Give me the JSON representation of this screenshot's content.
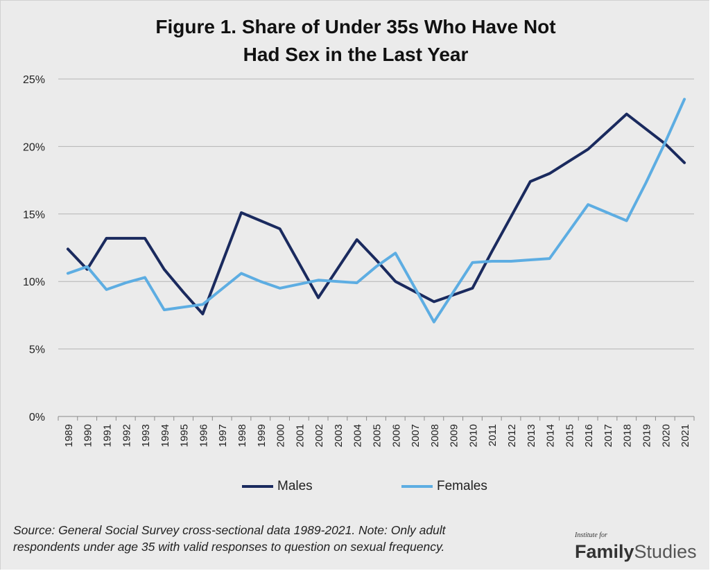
{
  "chart_data": {
    "type": "line",
    "title": "Figure 1. Share of Under 35s Who Have Not\nHad Sex in the Last Year",
    "x": [
      "1989",
      "1990",
      "1991",
      "1992",
      "1993",
      "1994",
      "1995",
      "1996",
      "1997",
      "1998",
      "1999",
      "2000",
      "2001",
      "2002",
      "2003",
      "2004",
      "2005",
      "2006",
      "2007",
      "2008",
      "2009",
      "2010",
      "2011",
      "2012",
      "2013",
      "2014",
      "2015",
      "2016",
      "2017",
      "2018",
      "2019",
      "2020",
      "2021"
    ],
    "yticks": [
      "0%",
      "5%",
      "10%",
      "15%",
      "20%",
      "25%"
    ],
    "ylim": [
      0,
      25
    ],
    "grid": true,
    "legend_position": "bottom",
    "series": [
      {
        "name": "Males",
        "color": "#1a2a5e",
        "values": [
          12.4,
          10.9,
          13.2,
          13.2,
          13.2,
          10.9,
          9.2,
          7.6,
          null,
          15.1,
          14.5,
          13.9,
          null,
          8.8,
          null,
          13.1,
          11.6,
          10.0,
          null,
          8.5,
          null,
          9.5,
          12.2,
          14.8,
          17.4,
          18.0,
          18.9,
          19.8,
          21.1,
          22.4,
          21.3,
          20.2,
          18.8
        ]
      },
      {
        "name": "Females",
        "color": "#5dade2",
        "values": [
          10.6,
          11.1,
          9.4,
          9.9,
          10.3,
          7.9,
          8.1,
          8.3,
          null,
          10.6,
          10.0,
          9.5,
          null,
          10.1,
          null,
          9.9,
          11.1,
          12.1,
          null,
          7.0,
          null,
          11.4,
          11.5,
          11.5,
          11.6,
          11.7,
          13.7,
          15.7,
          15.1,
          14.5,
          17.3,
          20.3,
          23.5
        ]
      }
    ]
  },
  "source": "Source: General Social Survey cross-sectional data 1989-2021. Note: Only adult respondents under age 35 with valid responses to question on sexual frequency.",
  "logo": {
    "small": "Institute for",
    "bold": "Family",
    "light": "Studies"
  }
}
